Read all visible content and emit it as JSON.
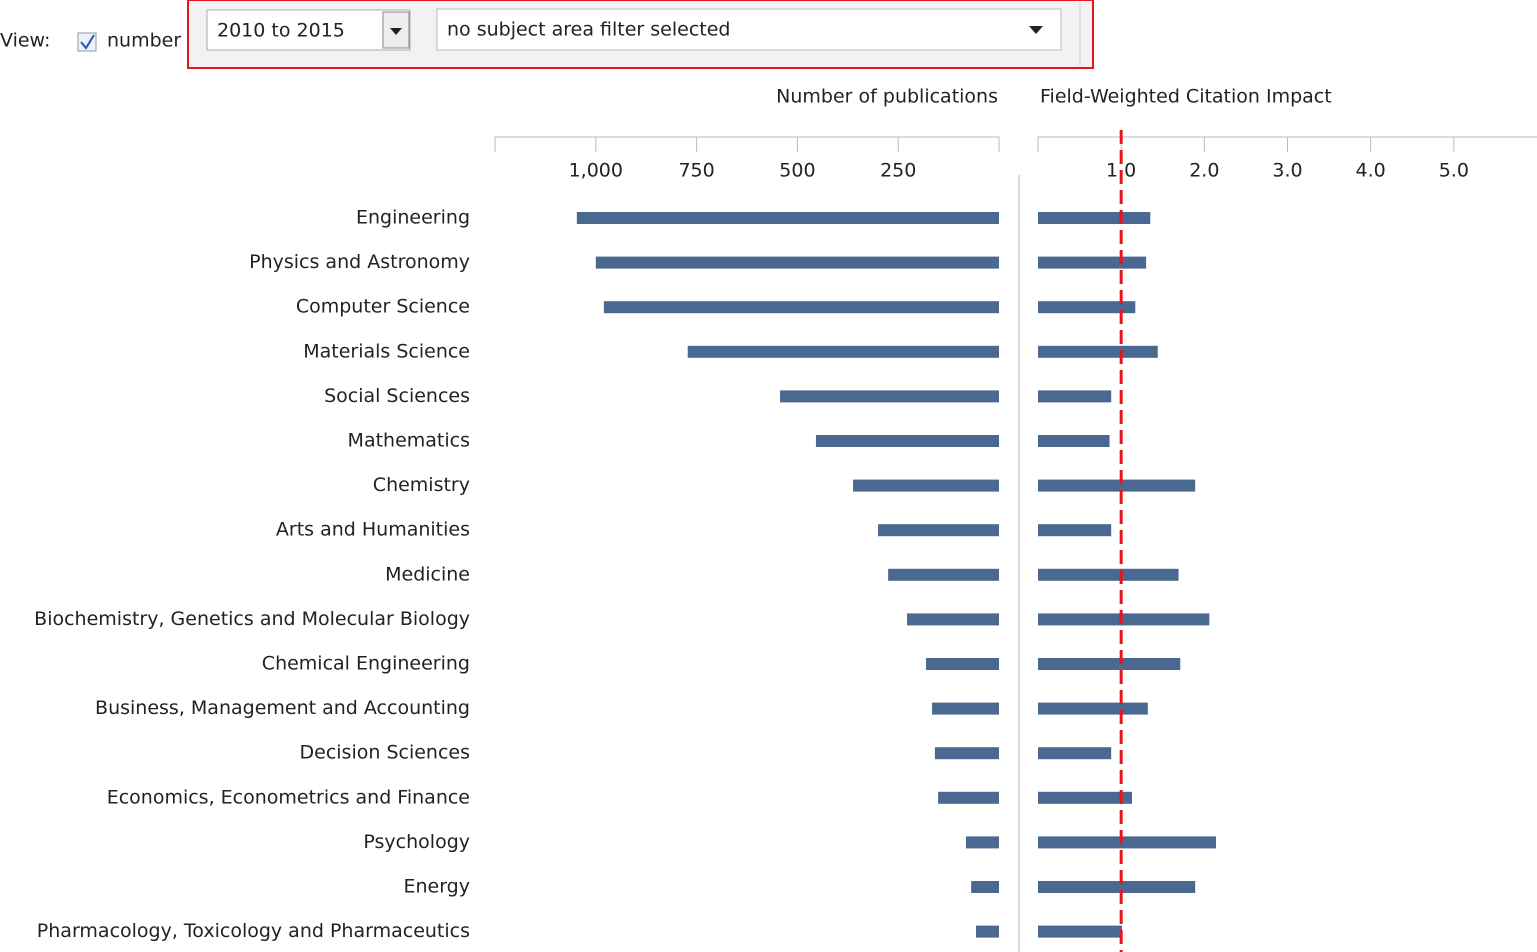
{
  "controls": {
    "view_label": "View:",
    "checkbox_label": "number",
    "period": "2010 to 2015",
    "subject_filter": "no subject area filter selected"
  },
  "chart_data": [
    {
      "type": "bar",
      "orientation": "horizontal",
      "x_reversed": true,
      "title": "Number of publications",
      "categories": [
        "Engineering",
        "Physics and Astronomy",
        "Computer Science",
        "Materials Science",
        "Social Sciences",
        "Mathematics",
        "Chemistry",
        "Arts and Humanities",
        "Medicine",
        "Biochemistry, Genetics and Molecular Biology",
        "Chemical Engineering",
        "Business, Management and Accounting",
        "Decision Sciences",
        "Economics, Econometrics and Finance",
        "Psychology",
        "Energy",
        "Pharmacology, Toxicology and Pharmaceutics"
      ],
      "values": [
        1047,
        1000,
        980,
        772,
        543,
        454,
        362,
        300,
        275,
        228,
        181,
        166,
        159,
        151,
        82,
        69,
        57
      ],
      "color": "#4a6890",
      "xlim": [
        0,
        1250
      ],
      "xticks": [
        {
          "value": 1000,
          "label": "1,000"
        },
        750,
        500,
        250
      ]
    },
    {
      "type": "bar",
      "orientation": "horizontal",
      "title": "Field-Weighted Citation Impact",
      "values": [
        1.35,
        1.3,
        1.17,
        1.44,
        0.88,
        0.86,
        1.89,
        0.88,
        1.69,
        2.06,
        1.71,
        1.32,
        0.88,
        1.13,
        2.14,
        1.89,
        1.01
      ],
      "color": "#4a6890",
      "xlim": [
        0,
        6
      ],
      "xticks": [
        {
          "value": 1,
          "label": "1.0"
        },
        {
          "value": 2,
          "label": "2.0"
        },
        {
          "value": 3,
          "label": "3.0"
        },
        {
          "value": 4,
          "label": "4.0"
        },
        {
          "value": 5,
          "label": "5.0"
        }
      ],
      "reference_line": 1,
      "reference_color": "#e8141e"
    }
  ]
}
